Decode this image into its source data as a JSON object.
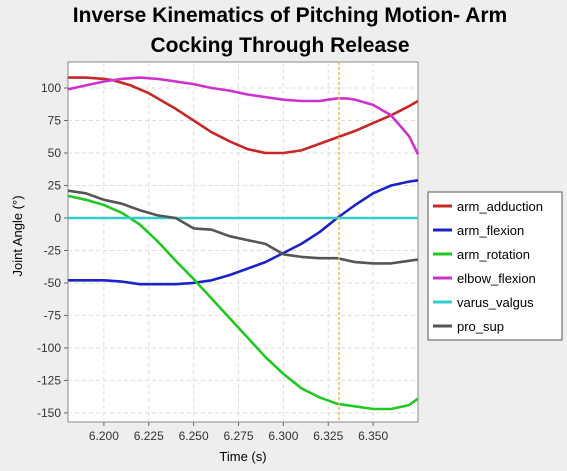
{
  "chart_data": {
    "type": "line",
    "title": [
      "Inverse Kinematics of Pitching Motion- Arm",
      "Cocking Through Release"
    ],
    "xlabel": "Time (s)",
    "ylabel": "Joint Angle (°)",
    "xlim": [
      6.18,
      6.375
    ],
    "ylim": [
      -157,
      120
    ],
    "x_ticks": [
      6.2,
      6.225,
      6.25,
      6.275,
      6.3,
      6.325,
      6.35
    ],
    "x_tick_labels": [
      "6.200",
      "6.225",
      "6.250",
      "6.275",
      "6.300",
      "6.325",
      "6.350"
    ],
    "y_ticks": [
      100,
      75,
      50,
      25,
      0,
      -25,
      -50,
      -75,
      -100,
      -125,
      -150
    ],
    "y_tick_labels": [
      "100",
      "75",
      "50",
      "25",
      "0",
      "-25",
      "-50",
      "-75",
      "-100",
      "-125",
      "-150"
    ],
    "grid": true,
    "legend_position": "right",
    "marker_line": {
      "x": 6.331,
      "color": "#f5b942"
    },
    "series": [
      {
        "name": "arm_adduction",
        "color": "#c62828",
        "x": [
          6.18,
          6.19,
          6.2,
          6.205,
          6.21,
          6.215,
          6.22,
          6.225,
          6.23,
          6.235,
          6.24,
          6.25,
          6.26,
          6.27,
          6.28,
          6.29,
          6.3,
          6.31,
          6.32,
          6.33,
          6.34,
          6.35,
          6.36,
          6.37,
          6.375
        ],
        "y": [
          108,
          108,
          107,
          106,
          104,
          102,
          99,
          96,
          92,
          88,
          84,
          75,
          66,
          59,
          53,
          50,
          50,
          52,
          57,
          62,
          67,
          73,
          79,
          86,
          90
        ]
      },
      {
        "name": "arm_flexion",
        "color": "#1a23c8",
        "x": [
          6.18,
          6.19,
          6.2,
          6.21,
          6.22,
          6.23,
          6.24,
          6.25,
          6.26,
          6.27,
          6.28,
          6.29,
          6.3,
          6.31,
          6.32,
          6.33,
          6.34,
          6.35,
          6.36,
          6.37,
          6.375
        ],
        "y": [
          -48,
          -48,
          -48,
          -49,
          -51,
          -51,
          -51,
          -50,
          -48,
          -44,
          -39,
          -34,
          -27,
          -20,
          -11,
          0,
          10,
          19,
          25,
          28,
          29
        ]
      },
      {
        "name": "arm_rotation",
        "color": "#22c822",
        "x": [
          6.18,
          6.19,
          6.2,
          6.21,
          6.22,
          6.23,
          6.24,
          6.25,
          6.26,
          6.27,
          6.28,
          6.29,
          6.3,
          6.31,
          6.32,
          6.33,
          6.34,
          6.35,
          6.36,
          6.37,
          6.375
        ],
        "y": [
          17,
          14,
          10,
          4,
          -5,
          -18,
          -33,
          -47,
          -62,
          -77,
          -92,
          -107,
          -120,
          -131,
          -138,
          -143,
          -145,
          -147,
          -147,
          -144,
          -139
        ]
      },
      {
        "name": "elbow_flexion",
        "color": "#cc33cc",
        "x": [
          6.18,
          6.19,
          6.2,
          6.21,
          6.22,
          6.23,
          6.24,
          6.25,
          6.26,
          6.27,
          6.28,
          6.29,
          6.3,
          6.31,
          6.32,
          6.325,
          6.33,
          6.335,
          6.34,
          6.35,
          6.36,
          6.37,
          6.375
        ],
        "y": [
          99,
          102,
          105,
          107,
          108,
          107,
          105,
          103,
          100,
          98,
          95,
          93,
          91,
          90,
          90,
          91,
          92,
          92,
          91,
          87,
          79,
          63,
          49
        ]
      },
      {
        "name": "varus_valgus",
        "color": "#33cccc",
        "x": [
          6.18,
          6.375
        ],
        "y": [
          0,
          0
        ]
      },
      {
        "name": "pro_sup",
        "color": "#555555",
        "x": [
          6.18,
          6.19,
          6.2,
          6.21,
          6.22,
          6.23,
          6.24,
          6.25,
          6.26,
          6.27,
          6.28,
          6.29,
          6.3,
          6.31,
          6.32,
          6.33,
          6.34,
          6.35,
          6.36,
          6.37,
          6.375
        ],
        "y": [
          21,
          19,
          14,
          11,
          6,
          2,
          0,
          -8,
          -9,
          -14,
          -17,
          -20,
          -28,
          -30,
          -31,
          -31,
          -34,
          -35,
          -35,
          -33,
          -32
        ]
      }
    ]
  }
}
